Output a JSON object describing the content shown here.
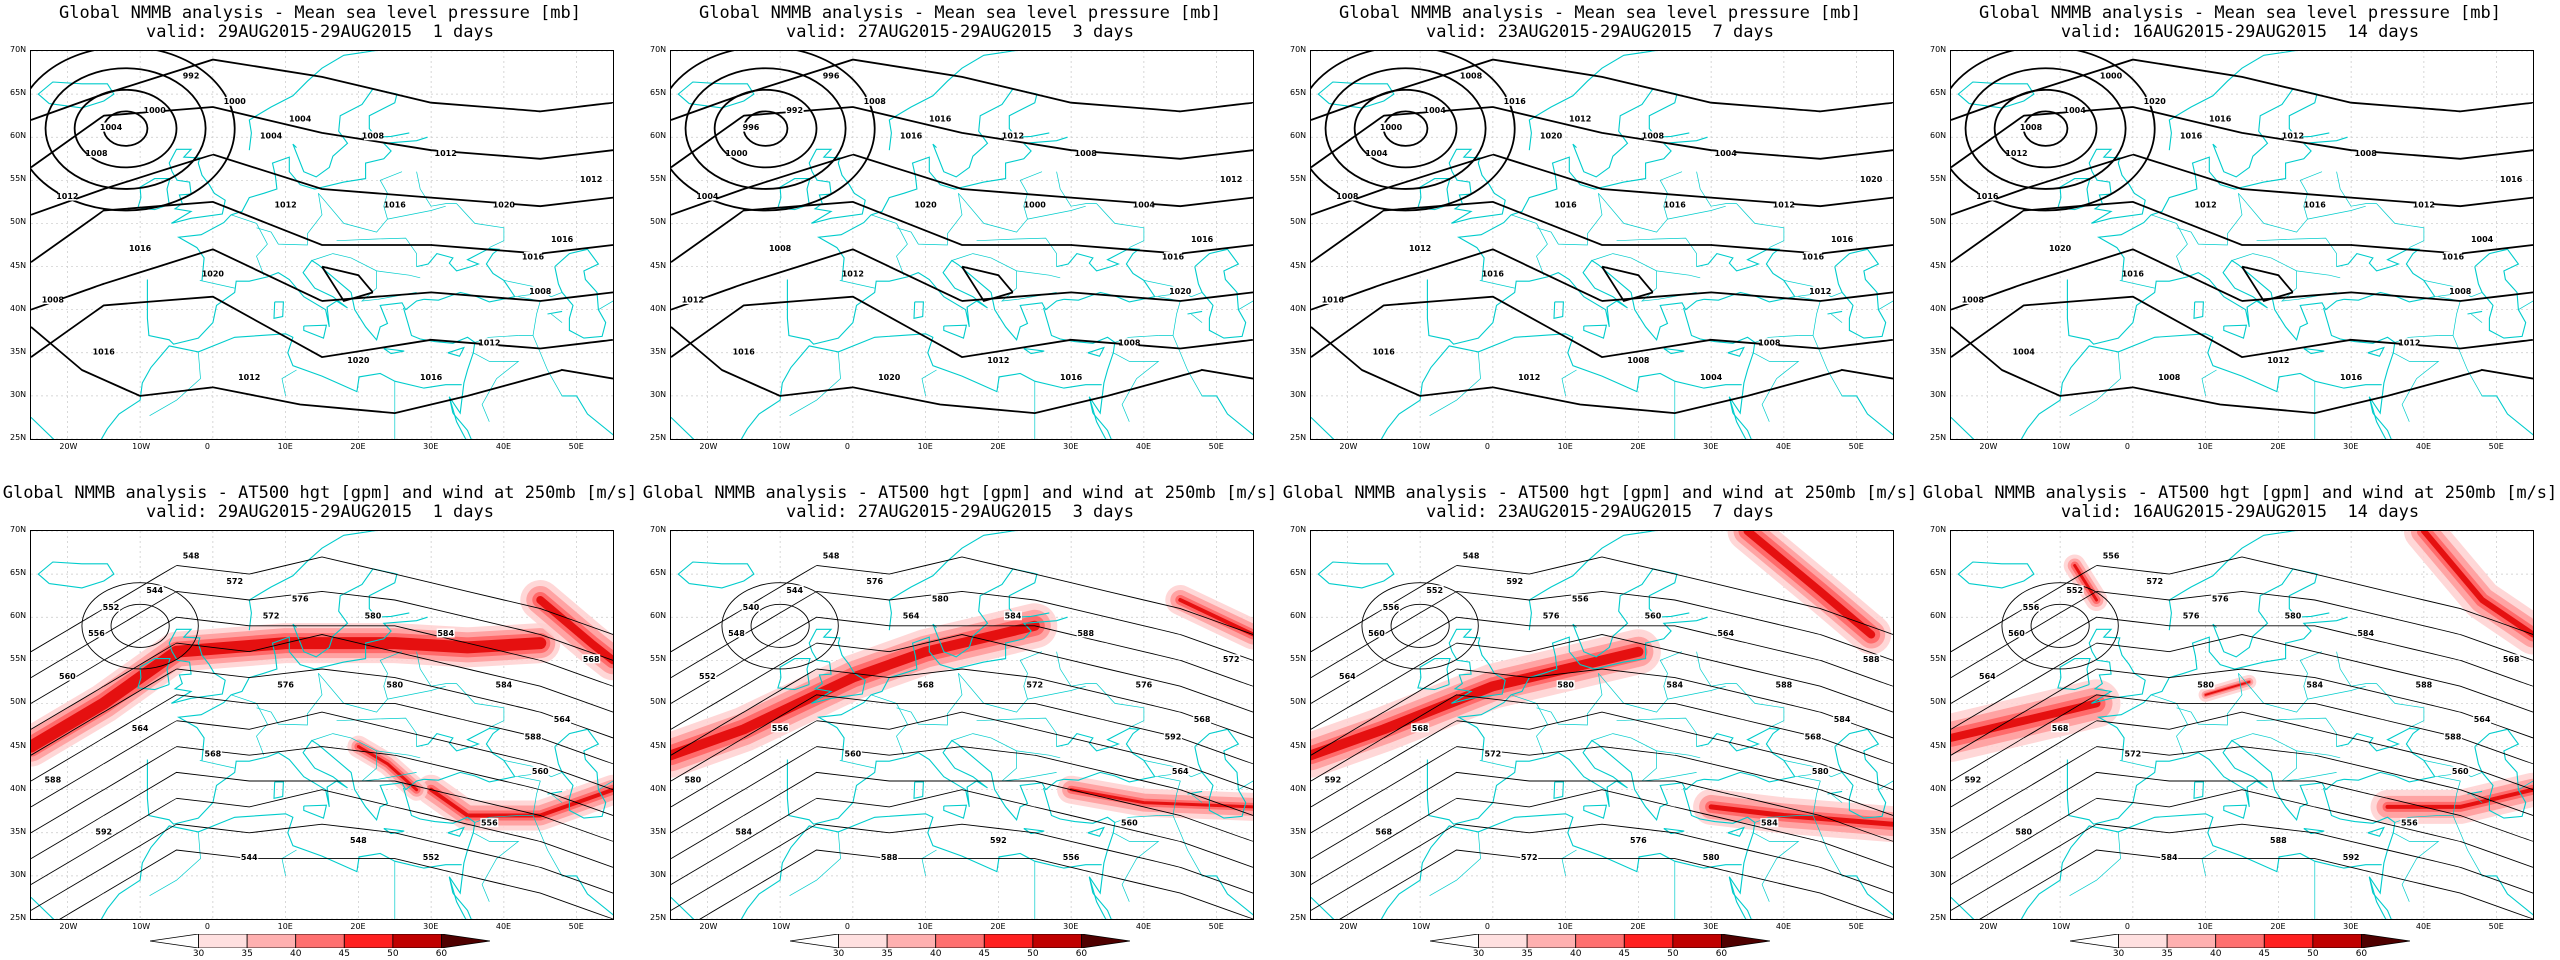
{
  "panels": [
    {
      "title_line1": "Global NMMB analysis - Mean sea level pressure [mb]",
      "title_line2": "valid: 29AUG2015-29AUG2015  1 days",
      "kind": "mslp",
      "contour_labels": [
        "992",
        "1000",
        "1004",
        "1008",
        "1012",
        "1016",
        "1020",
        "1004",
        "1012",
        "1016",
        "1020",
        "1008",
        "1016",
        "1012",
        "1020",
        "1016",
        "1012",
        "1008",
        "1016",
        "1012",
        "1000",
        "1004",
        "1008",
        "1012",
        "1016"
      ]
    },
    {
      "title_line1": "Global NMMB analysis - Mean sea level pressure [mb]",
      "title_line2": "valid: 27AUG2015-29AUG2015  3 days",
      "kind": "mslp",
      "contour_labels": [
        "996",
        "992",
        "996",
        "1000",
        "1004",
        "1008",
        "1012",
        "1016",
        "1020",
        "1000",
        "1004",
        "1012",
        "1016",
        "1020",
        "1012",
        "1016",
        "1008",
        "1020",
        "1016",
        "1012",
        "1008",
        "1016",
        "1012",
        "1008",
        "1016"
      ]
    },
    {
      "title_line1": "Global NMMB analysis - Mean sea level pressure [mb]",
      "title_line2": "valid: 23AUG2015-29AUG2015  7 days",
      "kind": "mslp",
      "contour_labels": [
        "1008",
        "1004",
        "1000",
        "1004",
        "1008",
        "1012",
        "1016",
        "1020",
        "1016",
        "1016",
        "1012",
        "1016",
        "1016",
        "1012",
        "1008",
        "1004",
        "1008",
        "1012",
        "1016",
        "1020",
        "1016",
        "1012",
        "1008",
        "1004",
        "1016"
      ]
    },
    {
      "title_line1": "Global NMMB analysis - Mean sea level pressure [mb]",
      "title_line2": "valid: 16AUG2015-29AUG2015  14 days",
      "kind": "mslp",
      "contour_labels": [
        "1000",
        "1004",
        "1008",
        "1012",
        "1016",
        "1020",
        "1016",
        "1016",
        "1012",
        "1016",
        "1012",
        "1008",
        "1004",
        "1008",
        "1012",
        "1016",
        "1012",
        "1008",
        "1004",
        "1016",
        "1020",
        "1016",
        "1012",
        "1008",
        "1016"
      ]
    },
    {
      "title_line1": "Global NMMB analysis - AT500 hgt [gpm] and wind at 250mb [m/s]",
      "title_line2": "valid: 29AUG2015-29AUG2015  1 days",
      "kind": "z500",
      "contour_labels": [
        "548",
        "544",
        "552",
        "556",
        "560",
        "564",
        "568",
        "572",
        "576",
        "580",
        "584",
        "588",
        "592",
        "544",
        "548",
        "552",
        "556",
        "560",
        "564",
        "568",
        "572",
        "576",
        "580",
        "584",
        "588"
      ]
    },
    {
      "title_line1": "Global NMMB analysis - AT500 hgt [gpm] and wind at 250mb [m/s]",
      "title_line2": "valid: 27AUG2015-29AUG2015  3 days",
      "kind": "z500",
      "contour_labels": [
        "548",
        "544",
        "540",
        "548",
        "552",
        "556",
        "560",
        "564",
        "568",
        "572",
        "576",
        "580",
        "584",
        "588",
        "592",
        "556",
        "560",
        "564",
        "568",
        "572",
        "576",
        "580",
        "584",
        "588",
        "592"
      ]
    },
    {
      "title_line1": "Global NMMB analysis - AT500 hgt [gpm] and wind at 250mb [m/s]",
      "title_line2": "valid: 23AUG2015-29AUG2015  7 days",
      "kind": "z500",
      "contour_labels": [
        "548",
        "552",
        "556",
        "560",
        "564",
        "568",
        "572",
        "576",
        "580",
        "584",
        "588",
        "592",
        "568",
        "572",
        "576",
        "580",
        "584",
        "580",
        "584",
        "588",
        "592",
        "556",
        "560",
        "564",
        "568"
      ]
    },
    {
      "title_line1": "Global NMMB analysis - AT500 hgt [gpm] and wind at 250mb [m/s]",
      "title_line2": "valid: 16AUG2015-29AUG2015  14 days",
      "kind": "z500",
      "contour_labels": [
        "556",
        "552",
        "556",
        "560",
        "564",
        "568",
        "572",
        "576",
        "580",
        "584",
        "588",
        "592",
        "580",
        "584",
        "588",
        "592",
        "556",
        "560",
        "564",
        "568",
        "572",
        "576",
        "580",
        "584",
        "588"
      ]
    }
  ],
  "lat_labels": [
    "70N",
    "65N",
    "60N",
    "55N",
    "50N",
    "45N",
    "40N",
    "35N",
    "30N",
    "25N"
  ],
  "lon_labels": [
    "20W",
    "10W",
    "0",
    "10E",
    "20E",
    "30E",
    "40E",
    "50E"
  ],
  "colorbar_labels": [
    "30",
    "35",
    "40",
    "45",
    "50",
    "60"
  ],
  "colors": {
    "coast": "#00cccc",
    "contour": "#000000",
    "jet_light": "#ffd0d0",
    "jet_mid": "#ff6060",
    "jet_dark": "#e00000",
    "jet_max": "#600000"
  }
}
